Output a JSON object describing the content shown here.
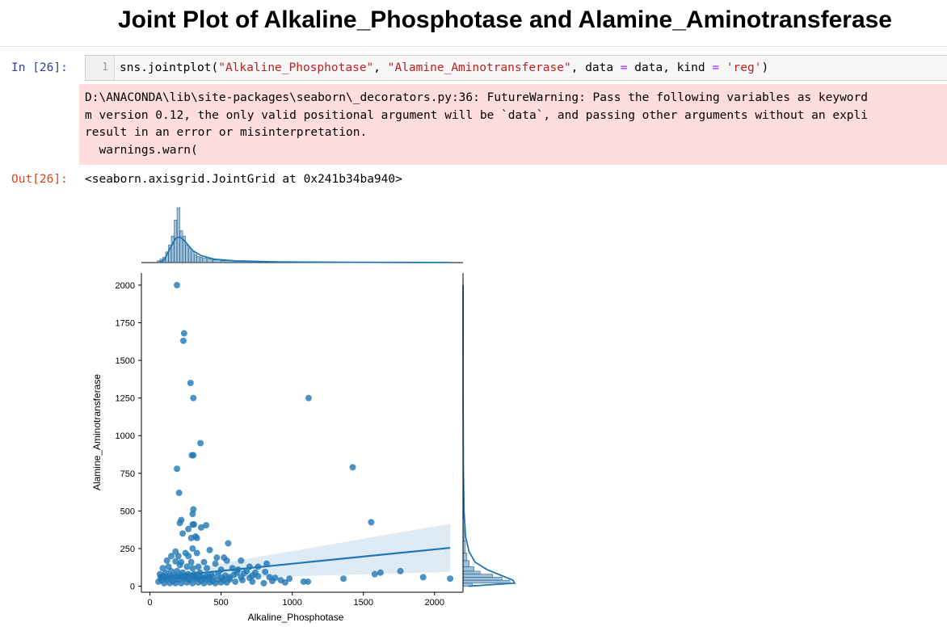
{
  "page": {
    "title": "Joint Plot of Alkaline_Phosphotase and Alamine_Aminotransferase"
  },
  "cell": {
    "in_prompt": "In [26]:",
    "line_number": "1",
    "code_parts": {
      "p1": "sns.jointplot(",
      "s1": "\"Alkaline_Phosphotase\"",
      "p2": ", ",
      "s2": "\"Alamine_Aminotransferase\"",
      "p3": ", data ",
      "o1": "=",
      "p4": " data, kind ",
      "o2": "=",
      "p5": " ",
      "s3": "'reg'",
      "p6": ")"
    },
    "warning_lines": [
      "D:\\ANACONDA\\lib\\site-packages\\seaborn\\_decorators.py:36: FutureWarning: Pass the following variables as keyword",
      "m version 0.12, the only valid positional argument will be `data`, and passing other arguments without an expli",
      "result in an error or misinterpretation.",
      "  warnings.warn("
    ],
    "out_prompt": "Out[26]:",
    "out_repr": "<seaborn.axisgrid.JointGrid at 0x241b34ba940>"
  },
  "chart_data": {
    "type": "scatter",
    "kind": "reg",
    "xlabel": "Alkaline_Phosphotase",
    "ylabel": "Alamine_Aminotransferase",
    "xticks": [
      0,
      500,
      1000,
      1500,
      2000
    ],
    "yticks": [
      0,
      250,
      500,
      750,
      1000,
      1250,
      1500,
      1750,
      2000
    ],
    "xlim": [
      -60,
      2200
    ],
    "ylim": [
      -40,
      2080
    ],
    "color": "#1f77b4",
    "grid": false,
    "regression": {
      "x": [
        63,
        2110
      ],
      "y": [
        60,
        255
      ],
      "ci_upper": [
        80,
        415
      ],
      "ci_lower": [
        40,
        95
      ]
    },
    "points": [
      [
        190,
        2000
      ],
      [
        240,
        1680
      ],
      [
        235,
        1630
      ],
      [
        285,
        1350
      ],
      [
        305,
        1250
      ],
      [
        1115,
        1250
      ],
      [
        355,
        950
      ],
      [
        295,
        870
      ],
      [
        305,
        870
      ],
      [
        190,
        780
      ],
      [
        1425,
        790
      ],
      [
        205,
        620
      ],
      [
        305,
        510
      ],
      [
        300,
        480
      ],
      [
        220,
        440
      ],
      [
        210,
        420
      ],
      [
        300,
        410
      ],
      [
        310,
        410
      ],
      [
        395,
        405
      ],
      [
        360,
        390
      ],
      [
        270,
        380
      ],
      [
        230,
        350
      ],
      [
        320,
        330
      ],
      [
        290,
        320
      ],
      [
        330,
        320
      ],
      [
        1555,
        425
      ],
      [
        550,
        285
      ],
      [
        300,
        250
      ],
      [
        420,
        240
      ],
      [
        180,
        230
      ],
      [
        250,
        220
      ],
      [
        330,
        220
      ],
      [
        150,
        200
      ],
      [
        200,
        200
      ],
      [
        270,
        200
      ],
      [
        470,
        190
      ],
      [
        520,
        190
      ],
      [
        120,
        170
      ],
      [
        180,
        165
      ],
      [
        220,
        160
      ],
      [
        290,
        160
      ],
      [
        380,
        160
      ],
      [
        460,
        150
      ],
      [
        540,
        170
      ],
      [
        640,
        170
      ],
      [
        700,
        130
      ],
      [
        820,
        150
      ],
      [
        760,
        130
      ],
      [
        90,
        120
      ],
      [
        130,
        130
      ],
      [
        210,
        140
      ],
      [
        260,
        130
      ],
      [
        300,
        120
      ],
      [
        340,
        130
      ],
      [
        400,
        120
      ],
      [
        500,
        110
      ],
      [
        580,
        120
      ],
      [
        620,
        110
      ],
      [
        680,
        100
      ],
      [
        740,
        90
      ],
      [
        810,
        95
      ],
      [
        70,
        80
      ],
      [
        110,
        90
      ],
      [
        150,
        100
      ],
      [
        190,
        100
      ],
      [
        230,
        90
      ],
      [
        270,
        80
      ],
      [
        310,
        80
      ],
      [
        350,
        90
      ],
      [
        430,
        80
      ],
      [
        480,
        85
      ],
      [
        530,
        70
      ],
      [
        590,
        75
      ],
      [
        640,
        60
      ],
      [
        700,
        55
      ],
      [
        760,
        65
      ],
      [
        840,
        60
      ],
      [
        880,
        55
      ],
      [
        920,
        40
      ],
      [
        980,
        50
      ],
      [
        1080,
        30
      ],
      [
        1110,
        30
      ],
      [
        1360,
        50
      ],
      [
        1580,
        80
      ],
      [
        1620,
        90
      ],
      [
        1760,
        100
      ],
      [
        1920,
        60
      ],
      [
        2110,
        50
      ],
      [
        60,
        30
      ],
      [
        80,
        40
      ],
      [
        100,
        20
      ],
      [
        120,
        45
      ],
      [
        140,
        20
      ],
      [
        160,
        35
      ],
      [
        180,
        20
      ],
      [
        200,
        45
      ],
      [
        220,
        20
      ],
      [
        240,
        50
      ],
      [
        260,
        25
      ],
      [
        280,
        40
      ],
      [
        300,
        20
      ],
      [
        320,
        50
      ],
      [
        340,
        25
      ],
      [
        360,
        40
      ],
      [
        380,
        20
      ],
      [
        400,
        45
      ],
      [
        420,
        25
      ],
      [
        440,
        35
      ],
      [
        460,
        20
      ],
      [
        480,
        45
      ],
      [
        500,
        25
      ],
      [
        520,
        40
      ],
      [
        540,
        25
      ],
      [
        560,
        45
      ],
      [
        600,
        30
      ],
      [
        650,
        40
      ],
      [
        720,
        30
      ],
      [
        800,
        20
      ],
      [
        860,
        35
      ],
      [
        950,
        25
      ],
      [
        75,
        60
      ],
      [
        95,
        65
      ],
      [
        115,
        55
      ],
      [
        135,
        70
      ],
      [
        155,
        60
      ],
      [
        175,
        70
      ],
      [
        195,
        60
      ],
      [
        215,
        70
      ],
      [
        235,
        60
      ],
      [
        255,
        70
      ],
      [
        275,
        55
      ],
      [
        295,
        65
      ],
      [
        315,
        60
      ],
      [
        335,
        55
      ],
      [
        355,
        65
      ],
      [
        375,
        55
      ],
      [
        395,
        65
      ],
      [
        415,
        60
      ],
      [
        445,
        60
      ],
      [
        505,
        55
      ],
      [
        560,
        60
      ],
      [
        610,
        90
      ],
      [
        660,
        85
      ],
      [
        720,
        70
      ]
    ],
    "marg_x": {
      "bins": [
        [
          50,
          70,
          2
        ],
        [
          70,
          90,
          4
        ],
        [
          90,
          110,
          6
        ],
        [
          110,
          130,
          12
        ],
        [
          130,
          150,
          20
        ],
        [
          150,
          170,
          30
        ],
        [
          170,
          190,
          48
        ],
        [
          190,
          210,
          62
        ],
        [
          210,
          230,
          36
        ],
        [
          230,
          250,
          30
        ],
        [
          250,
          270,
          20
        ],
        [
          270,
          290,
          16
        ],
        [
          290,
          310,
          12
        ],
        [
          310,
          330,
          9
        ],
        [
          330,
          350,
          7
        ],
        [
          350,
          370,
          6
        ],
        [
          370,
          400,
          5
        ],
        [
          400,
          440,
          4
        ],
        [
          440,
          500,
          3
        ],
        [
          500,
          600,
          2
        ],
        [
          600,
          800,
          1.5
        ],
        [
          800,
          1200,
          1
        ],
        [
          1200,
          2110,
          0.6
        ]
      ],
      "kde": [
        [
          60,
          0
        ],
        [
          100,
          0.08
        ],
        [
          140,
          0.4
        ],
        [
          180,
          0.7
        ],
        [
          210,
          0.75
        ],
        [
          250,
          0.6
        ],
        [
          300,
          0.35
        ],
        [
          360,
          0.2
        ],
        [
          450,
          0.1
        ],
        [
          600,
          0.05
        ],
        [
          900,
          0.02
        ],
        [
          1400,
          0.008
        ],
        [
          2110,
          0.003
        ]
      ]
    },
    "marg_y": {
      "bins": [
        [
          0,
          20,
          12
        ],
        [
          20,
          40,
          60
        ],
        [
          40,
          60,
          50
        ],
        [
          60,
          80,
          38
        ],
        [
          80,
          100,
          22
        ],
        [
          100,
          130,
          14
        ],
        [
          130,
          170,
          8
        ],
        [
          170,
          220,
          5
        ],
        [
          220,
          300,
          3
        ],
        [
          300,
          450,
          2
        ],
        [
          450,
          700,
          1
        ],
        [
          700,
          2000,
          0.5
        ]
      ],
      "kde": [
        [
          0,
          6
        ],
        [
          20,
          60
        ],
        [
          40,
          58
        ],
        [
          70,
          45
        ],
        [
          110,
          28
        ],
        [
          160,
          14
        ],
        [
          230,
          7
        ],
        [
          330,
          3
        ],
        [
          500,
          1.2
        ],
        [
          800,
          0.4
        ],
        [
          1300,
          0.1
        ],
        [
          2000,
          0.05
        ]
      ]
    }
  }
}
